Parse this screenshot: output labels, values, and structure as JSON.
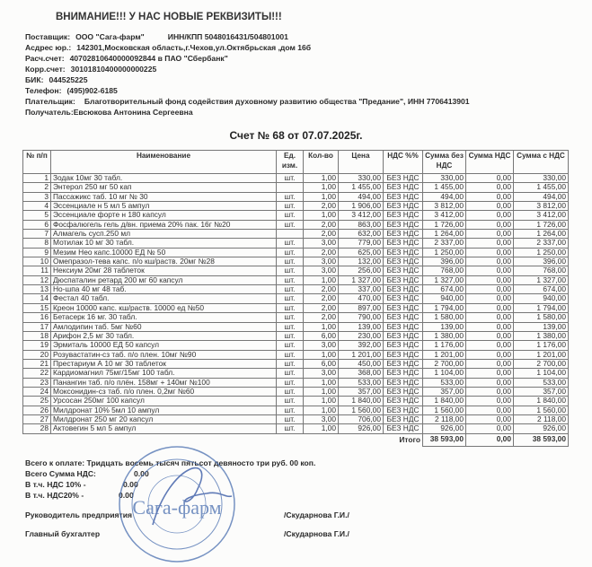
{
  "notice": "ВНИМАНИЕ!!! У НАС НОВЫЕ РЕКВИЗИТЫ!!!",
  "requisites": {
    "supplier_label": "Поставщик:",
    "supplier": "ООО \"Сага-фарм\"",
    "inn_kpp": "ИНН/КПП 5048016431/504801001",
    "address_label": "Асдрес юр.:",
    "address": "142301,Московская область,г.Чехов,ул.Октябрьская ,дом 16б",
    "account_label": "Расч.счет:",
    "account": "40702810640000092844 в ПАО \"Сбербанк\"",
    "corr_label": "Корр.счет:",
    "corr": "30101810400000000225",
    "bik_label": "БИК:",
    "bik": "044525225",
    "phone_label": "Телефон:",
    "phone": "(495)902-6185",
    "payer_label": "Плательщик:",
    "payer": "Благотворительный фонд содействия духовному развитию общества  \"Предание\", ИНН 7706413901",
    "recipient_label": "Получатель:",
    "recipient": "Евсюкова Антонина Сергеевна"
  },
  "invoice_title": "Счет № 68  от 07.07.2025г.",
  "table": {
    "headers": [
      "№ п/п",
      "Наименование",
      "Ед. изм.",
      "Кол-во",
      "Цена",
      "НДС %%",
      "Сумма без НДС",
      "Сумма НДС",
      "Сумма с НДС"
    ],
    "rows": [
      [
        "1",
        "Зодак  10мг 30 табл.",
        "шт.",
        "1,00",
        "330,00",
        "БЕЗ НДС",
        "330,00",
        "0,00",
        "330,00"
      ],
      [
        "2",
        "Энтерол  250 мг  50 кап",
        "",
        "1,00",
        "1 455,00",
        "БЕЗ НДС",
        "1 455,00",
        "0,00",
        "1 455,00"
      ],
      [
        "3",
        "Пассажикс таб. 10 мг № 30",
        "шт.",
        "1,00",
        "494,00",
        "БЕЗ НДС",
        "494,00",
        "0,00",
        "494,00"
      ],
      [
        "4",
        "Эссенциале н 5 мл 5 ампул",
        "шт.",
        "2,00",
        "1 906,00",
        "БЕЗ НДС",
        "3 812,00",
        "0,00",
        "3 812,00"
      ],
      [
        "5",
        "Эссенциале форте н 180 капсул",
        "шт.",
        "1,00",
        "3 412,00",
        "БЕЗ НДС",
        "3 412,00",
        "0,00",
        "3 412,00"
      ],
      [
        "6",
        "Фосфалюгель гель д/вн. приема 20% пак. 16г №20",
        "шт.",
        "2,00",
        "863,00",
        "БЕЗ НДС",
        "1 726,00",
        "0,00",
        "1 726,00"
      ],
      [
        "7",
        "Алмагель сусп.250 мл",
        "",
        "2,00",
        "632,00",
        "БЕЗ НДС",
        "1 264,00",
        "0,00",
        "1 264,00"
      ],
      [
        "8",
        "Мотилак 10 мг 30 табл.",
        "шт.",
        "3,00",
        "779,00",
        "БЕЗ НДС",
        "2 337,00",
        "0,00",
        "2 337,00"
      ],
      [
        "9",
        "Мезим Нео капс.10000 ЕД № 50",
        "шт.",
        "2,00",
        "625,00",
        "БЕЗ НДС",
        "1 250,00",
        "0,00",
        "1 250,00"
      ],
      [
        "10",
        "Омепразол-тева капс. п/о кш/раств. 20мг №28",
        "шт.",
        "3,00",
        "132,00",
        "БЕЗ НДС",
        "396,00",
        "0,00",
        "396,00"
      ],
      [
        "11",
        "Нексиум 20мг 28 таблеток",
        "шт.",
        "3,00",
        "256,00",
        "БЕЗ НДС",
        "768,00",
        "0,00",
        "768,00"
      ],
      [
        "12",
        "Дюспаталин ретард 200 мг 60 капсул",
        "шт.",
        "1,00",
        "1 327,00",
        "БЕЗ НДС",
        "1 327,00",
        "0,00",
        "1 327,00"
      ],
      [
        "13",
        "Но-шпа 40 мг 48 таб.",
        "шт.",
        "2,00",
        "337,00",
        "БЕЗ НДС",
        "674,00",
        "0,00",
        "674,00"
      ],
      [
        "14",
        "Фестал 40 табл.",
        "шт.",
        "2,00",
        "470,00",
        "БЕЗ НДС",
        "940,00",
        "0,00",
        "940,00"
      ],
      [
        "15",
        "Креон 10000 капс. кш/раств. 10000 ед №50",
        "шт.",
        "2,00",
        "897,00",
        "БЕЗ НДС",
        "1 794,00",
        "0,00",
        "1 794,00"
      ],
      [
        "16",
        "Бетасерк 16 мг. 30 табл.",
        "шт.",
        "2,00",
        "790,00",
        "БЕЗ НДС",
        "1 580,00",
        "0,00",
        "1 580,00"
      ],
      [
        "17",
        "Амлодипин таб. 5мг №60",
        "шт.",
        "1,00",
        "139,00",
        "БЕЗ НДС",
        "139,00",
        "0,00",
        "139,00"
      ],
      [
        "18",
        "Арифон 2,5 мг 30 табл.",
        "шт.",
        "6,00",
        "230,00",
        "БЕЗ НДС",
        "1 380,00",
        "0,00",
        "1 380,00"
      ],
      [
        "19",
        "Эрмиталь 10000 ЕД 50 капсул",
        "шт.",
        "3,00",
        "392,00",
        "БЕЗ НДС",
        "1 176,00",
        "0,00",
        "1 176,00"
      ],
      [
        "20",
        "Розувастатин-сз таб. п/о плен. 10мг №90",
        "шт.",
        "1,00",
        "1 201,00",
        "БЕЗ НДС",
        "1 201,00",
        "0,00",
        "1 201,00"
      ],
      [
        "21",
        "Престариум А 10 мг 30 таблеток",
        "шт.",
        "6,00",
        "450,00",
        "БЕЗ НДС",
        "2 700,00",
        "0,00",
        "2 700,00"
      ],
      [
        "22",
        "Кардиомагнил 75мг/15мг 100 табл.",
        "шт.",
        "3,00",
        "368,00",
        "БЕЗ НДС",
        "1 104,00",
        "0,00",
        "1 104,00"
      ],
      [
        "23",
        "Панангин таб. п/о плён. 158мг + 140мг №100",
        "шт.",
        "1,00",
        "533,00",
        "БЕЗ НДС",
        "533,00",
        "0,00",
        "533,00"
      ],
      [
        "24",
        "Моксонидин-сз таб. п/о плен. 0,2мг №60",
        "шт.",
        "1,00",
        "357,00",
        "БЕЗ НДС",
        "357,00",
        "0,00",
        "357,00"
      ],
      [
        "25",
        "Урсосан 250мг 100 капсул",
        "шт.",
        "1,00",
        "1 840,00",
        "БЕЗ НДС",
        "1 840,00",
        "0,00",
        "1 840,00"
      ],
      [
        "26",
        "Милдронат 10%  5мл 10 ампул",
        "шт.",
        "1,00",
        "1 560,00",
        "БЕЗ НДС",
        "1 560,00",
        "0,00",
        "1 560,00"
      ],
      [
        "27",
        "Милдронат 250 мг 20 капсул",
        "шт.",
        "3,00",
        "706,00",
        "БЕЗ НДС",
        "2 118,00",
        "0,00",
        "2 118,00"
      ],
      [
        "28",
        "Актовегин 5 мл 5 ампул",
        "шт.",
        "1,00",
        "926,00",
        "БЕЗ НДС",
        "926,00",
        "0,00",
        "926,00"
      ]
    ],
    "total_label": "Итого",
    "total_without_vat": "38 593,00",
    "total_vat": "0,00",
    "total_with_vat": "38 593,00"
  },
  "footer": {
    "to_pay": "Всего к оплате: Тридцать восемь тысяч пятьсот девяносто три руб. 00 коп.",
    "vat_total_label": "Всего Сумма НДС:",
    "vat_total": "0.00",
    "vat10_label": "В т.ч. НДС 10% -",
    "vat10": "0.00",
    "vat20_label": "В т.ч. НДС20% -",
    "vat20": "0.00",
    "director_label": "Руководитель предприятия",
    "director_name": "/Скударнова Г.И./",
    "accountant_label": "Главный бухгалтер",
    "accountant_name": "/Скударнова Г.И./"
  },
  "stamp": {
    "text": "Сага-фарм",
    "color": "#4a6fb0"
  }
}
